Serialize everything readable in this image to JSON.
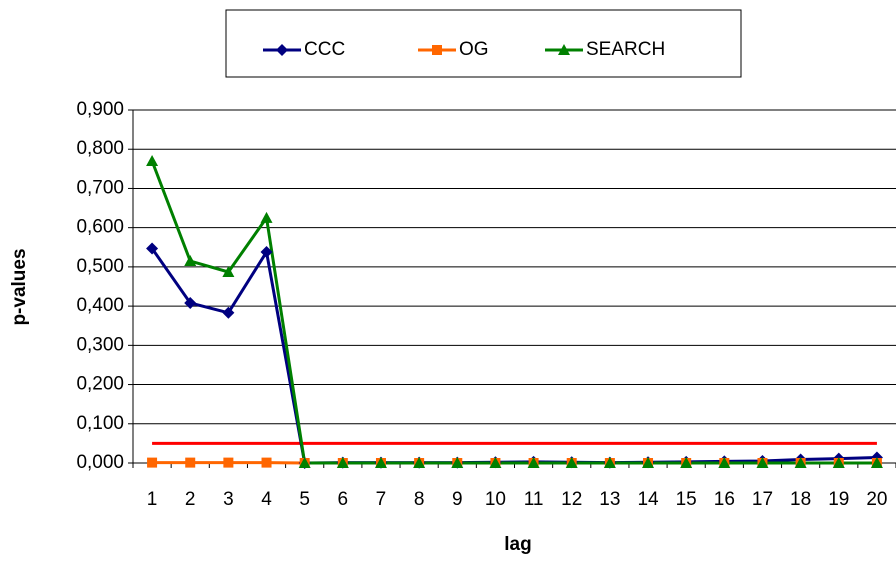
{
  "chart_data": {
    "type": "line",
    "x_label": "lag",
    "y_label": "p-values",
    "categories": [
      "1",
      "2",
      "3",
      "4",
      "5",
      "6",
      "7",
      "8",
      "9",
      "10",
      "11",
      "12",
      "13",
      "14",
      "15",
      "16",
      "17",
      "18",
      "19",
      "20"
    ],
    "series": [
      {
        "name": "CCC",
        "color": "#000080",
        "marker": "diamond",
        "values": [
          0.547,
          0.408,
          0.383,
          0.538,
          0.0,
          0.001,
          0.001,
          0.001,
          0.001,
          0.002,
          0.003,
          0.002,
          0.001,
          0.002,
          0.003,
          0.004,
          0.005,
          0.009,
          0.011,
          0.014
        ]
      },
      {
        "name": "OG",
        "color": "#ff6600",
        "marker": "square",
        "values": [
          0.001,
          0.001,
          0.001,
          0.001,
          0.0,
          0.0,
          0.0,
          0.0,
          0.0,
          0.0,
          0.0,
          0.0,
          0.0,
          0.0,
          0.0,
          0.0,
          0.0,
          0.0,
          0.0,
          0.0
        ]
      },
      {
        "name": "SEARCH",
        "color": "#008000",
        "marker": "triangle",
        "values": [
          0.77,
          0.515,
          0.487,
          0.625,
          0.0,
          0.0,
          0.0,
          0.0,
          0.0,
          0.0,
          0.0,
          0.0,
          0.0,
          0.0,
          0.0,
          0.0,
          0.0,
          0.0,
          0.0,
          0.0
        ]
      }
    ],
    "reference_line": {
      "value": 0.05,
      "color": "#ff0000"
    },
    "ylim": [
      0,
      0.9
    ],
    "yticks": [
      {
        "value": 0,
        "label": "0,000"
      },
      {
        "value": 0.1,
        "label": "0,100"
      },
      {
        "value": 0.2,
        "label": "0,200"
      },
      {
        "value": 0.3,
        "label": "0,300"
      },
      {
        "value": 0.4,
        "label": "0,400"
      },
      {
        "value": 0.5,
        "label": "0,500"
      },
      {
        "value": 0.6,
        "label": "0,600"
      },
      {
        "value": 0.7,
        "label": "0,700"
      },
      {
        "value": 0.8,
        "label": "0,800"
      },
      {
        "value": 0.9,
        "label": "0,900"
      }
    ],
    "grid": true,
    "legend": "top"
  }
}
